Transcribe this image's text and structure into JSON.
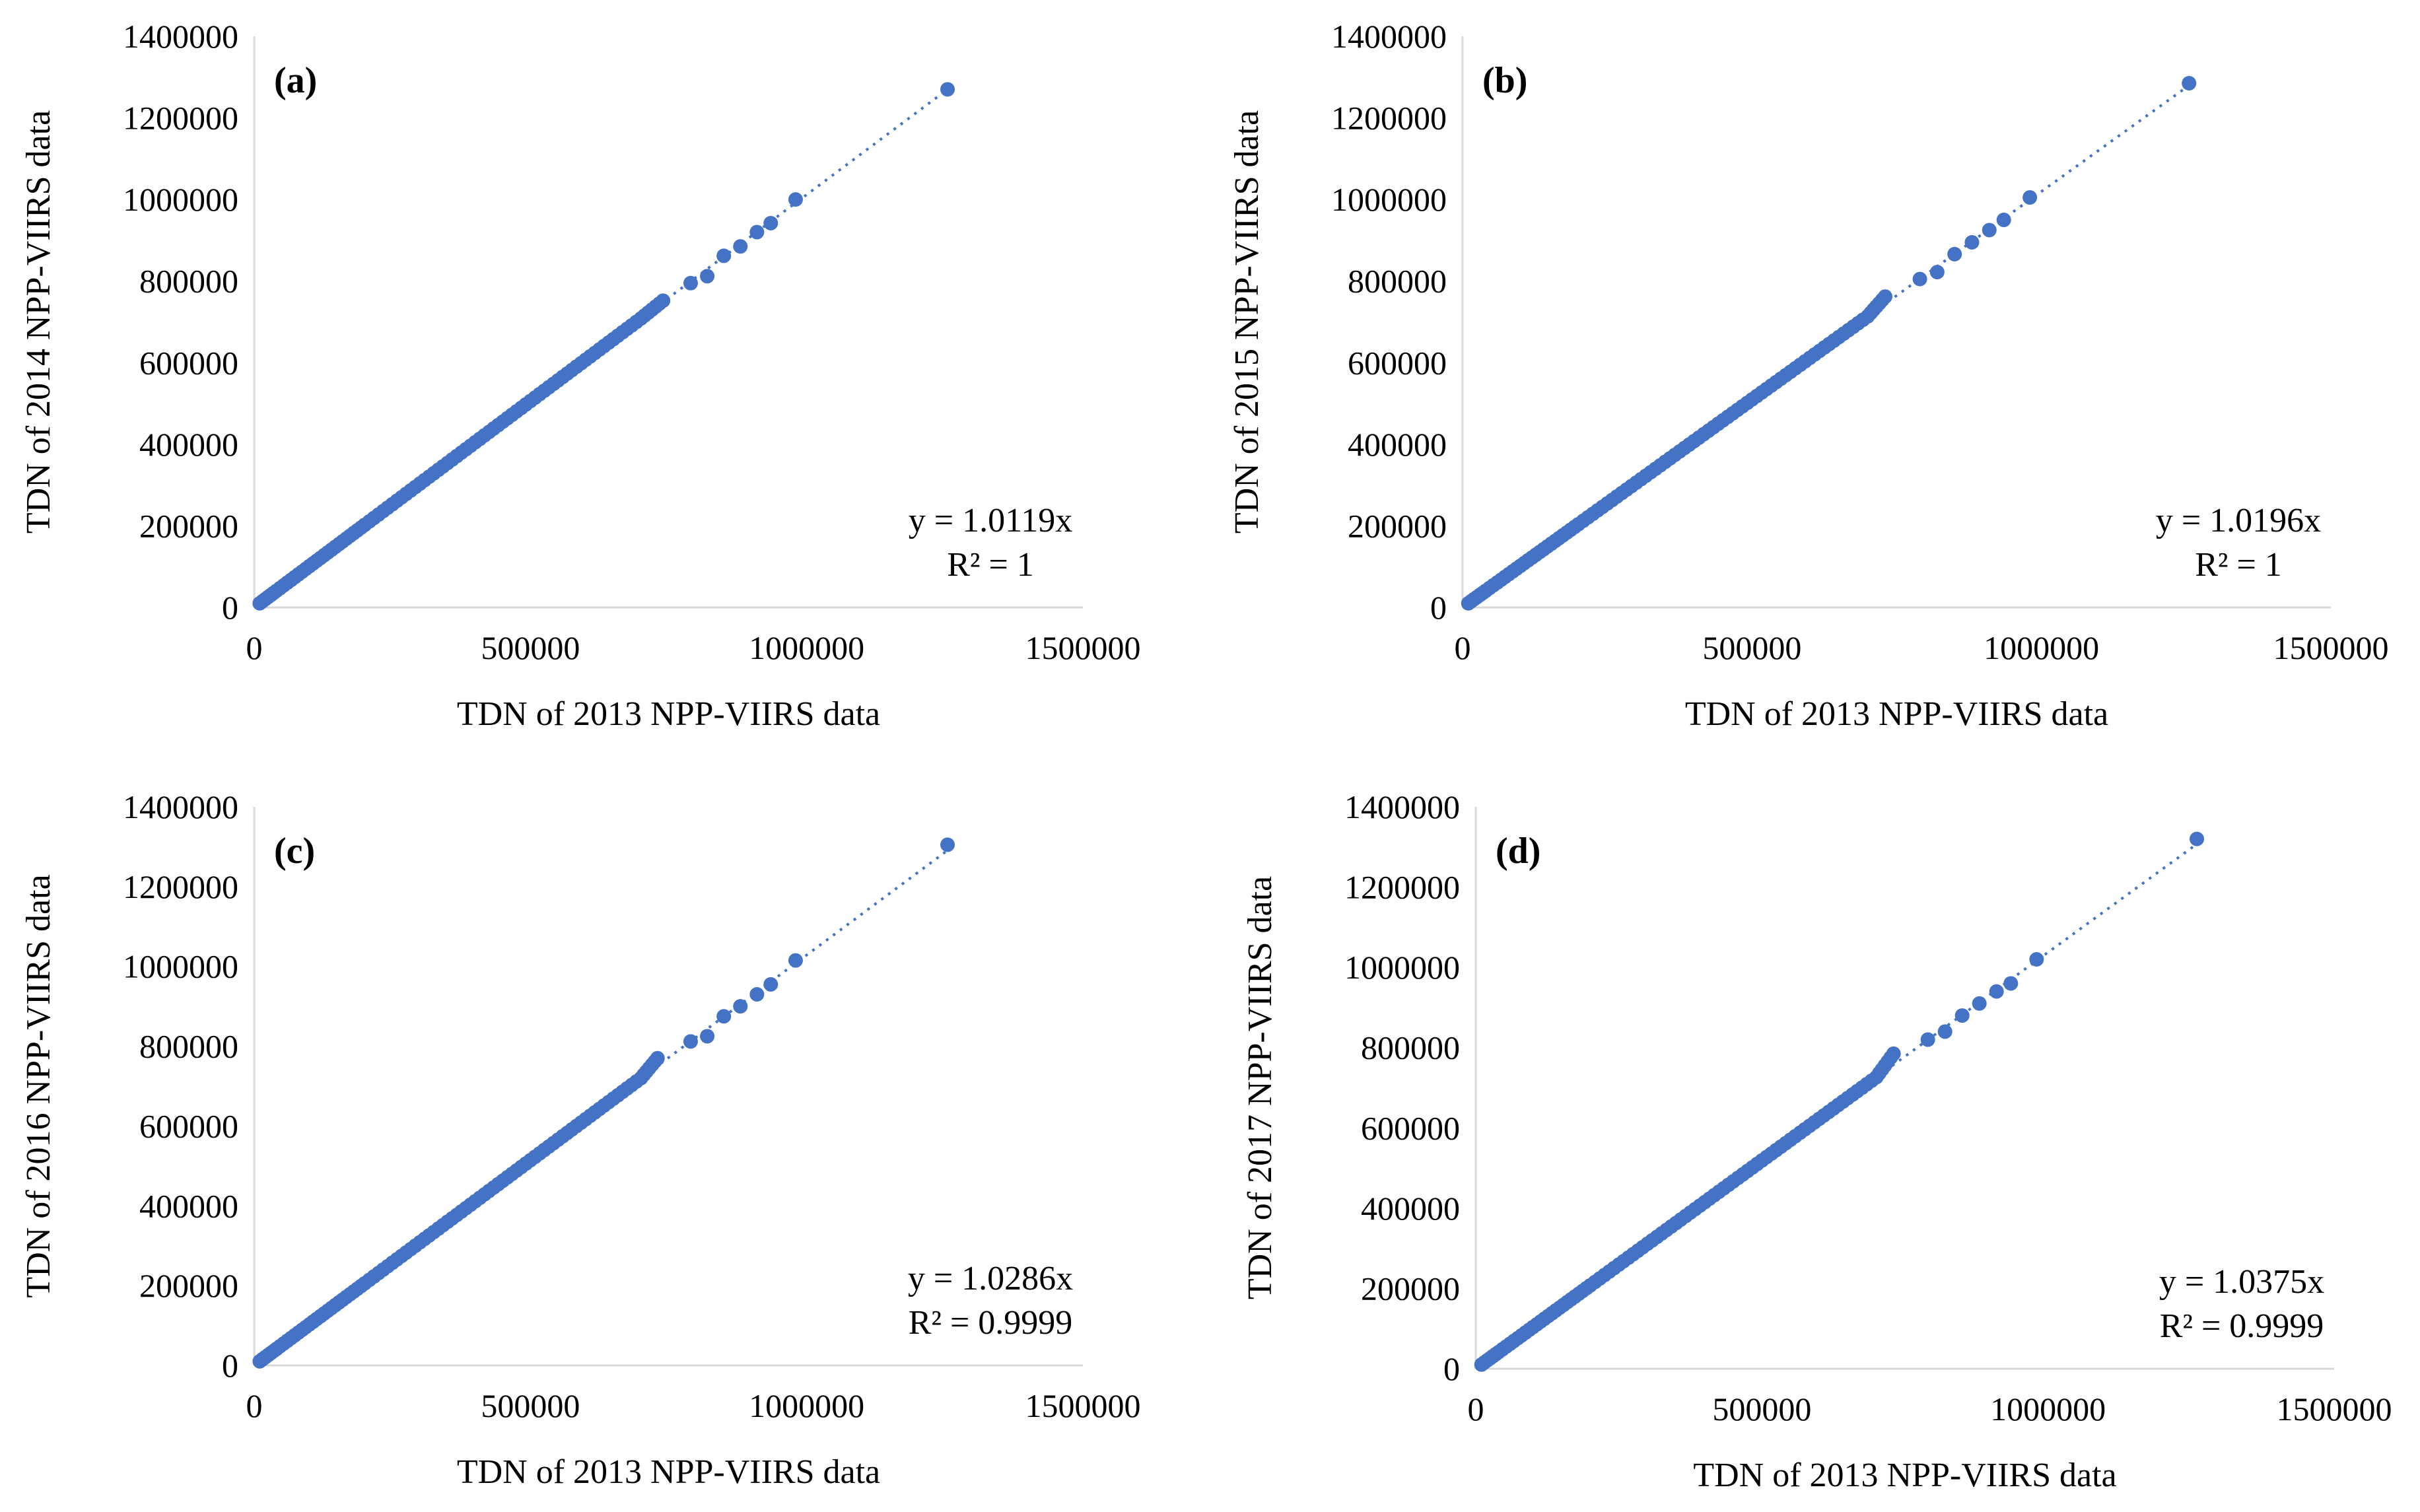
{
  "chart_data": [
    {
      "type": "scatter",
      "panel_label": "(a)",
      "xlabel": "TDN of 2013 NPP-VIIRS data",
      "ylabel": "TDN of 2014 NPP-VIIRS data",
      "xlim": [
        0,
        1500000
      ],
      "ylim": [
        0,
        1400000
      ],
      "x_ticks": [
        "0",
        "500000",
        "1000000",
        "1500000"
      ],
      "y_ticks": [
        "0",
        "200000",
        "400000",
        "600000",
        "800000",
        "1000000",
        "1200000",
        "1400000"
      ],
      "equation": "y = 1.0119x",
      "r2": "R² = 1",
      "slope": 1.0119,
      "x": [
        10000,
        40000,
        80000,
        120000,
        160000,
        200000,
        250000,
        300000,
        350000,
        400000,
        450000,
        500000,
        550000,
        600000,
        650000,
        700000,
        740000,
        790000,
        820000,
        850000,
        880000,
        910000,
        935000,
        980000,
        1255000
      ],
      "y": [
        10100,
        40500,
        81000,
        121400,
        161900,
        202400,
        253000,
        303600,
        354200,
        404800,
        455400,
        506000,
        556500,
        607100,
        657700,
        708300,
        752000,
        795000,
        812000,
        862000,
        885000,
        920000,
        942000,
        1000000,
        1270000
      ]
    },
    {
      "type": "scatter",
      "panel_label": "(b)",
      "xlabel": "TDN of 2013 NPP-VIIRS data",
      "ylabel": "TDN of 2015 NPP-VIIRS data",
      "xlim": [
        0,
        1500000
      ],
      "ylim": [
        0,
        1400000
      ],
      "x_ticks": [
        "0",
        "500000",
        "1000000",
        "1500000"
      ],
      "y_ticks": [
        "0",
        "200000",
        "400000",
        "600000",
        "800000",
        "1000000",
        "1200000",
        "1400000"
      ],
      "equation": "y = 1.0196x",
      "r2": "R² = 1",
      "slope": 1.0196,
      "x": [
        10000,
        40000,
        80000,
        120000,
        160000,
        200000,
        250000,
        300000,
        350000,
        400000,
        450000,
        500000,
        550000,
        600000,
        650000,
        700000,
        730000,
        790000,
        820000,
        850000,
        880000,
        910000,
        935000,
        980000,
        1255000
      ],
      "y": [
        10200,
        40800,
        81600,
        122400,
        163100,
        203900,
        254900,
        305900,
        356900,
        407800,
        458800,
        509800,
        560800,
        611800,
        662700,
        713700,
        762000,
        805000,
        822000,
        866000,
        895000,
        925000,
        950000,
        1005000,
        1285000
      ]
    },
    {
      "type": "scatter",
      "panel_label": "(c)",
      "xlabel": "TDN of 2013 NPP-VIIRS data",
      "ylabel": "TDN of 2016 NPP-VIIRS data",
      "xlim": [
        0,
        1500000
      ],
      "ylim": [
        0,
        1400000
      ],
      "x_ticks": [
        "0",
        "500000",
        "1000000",
        "1500000"
      ],
      "y_ticks": [
        "0",
        "200000",
        "400000",
        "600000",
        "800000",
        "1000000",
        "1200000",
        "1400000"
      ],
      "equation": "y = 1.0286x",
      "r2": "R² = 0.9999",
      "slope": 1.0286,
      "x": [
        10000,
        40000,
        80000,
        120000,
        160000,
        200000,
        250000,
        300000,
        350000,
        400000,
        450000,
        500000,
        550000,
        600000,
        650000,
        700000,
        730000,
        790000,
        820000,
        850000,
        880000,
        910000,
        935000,
        980000,
        1255000
      ],
      "y": [
        10300,
        41100,
        82300,
        123400,
        164600,
        205700,
        257200,
        308600,
        360000,
        411400,
        462900,
        514300,
        565700,
        617200,
        668600,
        720000,
        770000,
        812000,
        825000,
        875000,
        900000,
        930000,
        955000,
        1015000,
        1305000
      ]
    },
    {
      "type": "scatter",
      "panel_label": "(d)",
      "xlabel": "TDN of 2013 NPP-VIIRS data",
      "ylabel": "TDN of 2017 NPP-VIIRS data",
      "xlim": [
        0,
        1500000
      ],
      "ylim": [
        0,
        1400000
      ],
      "x_ticks": [
        "0",
        "500000",
        "1000000",
        "1500000"
      ],
      "y_ticks": [
        "0",
        "200000",
        "400000",
        "600000",
        "800000",
        "1000000",
        "1200000",
        "1400000"
      ],
      "equation": "y = 1.0375x",
      "r2": "R² = 0.9999",
      "slope": 1.0375,
      "x": [
        10000,
        40000,
        80000,
        120000,
        160000,
        200000,
        250000,
        300000,
        350000,
        400000,
        450000,
        500000,
        550000,
        600000,
        650000,
        700000,
        730000,
        790000,
        820000,
        850000,
        880000,
        910000,
        935000,
        980000,
        1260000
      ],
      "y": [
        10400,
        41500,
        83000,
        124500,
        166000,
        207500,
        259400,
        311300,
        363100,
        415000,
        466900,
        518800,
        570600,
        622500,
        674400,
        726300,
        785000,
        820000,
        840000,
        880000,
        910000,
        940000,
        960000,
        1020000,
        1320000
      ]
    }
  ]
}
